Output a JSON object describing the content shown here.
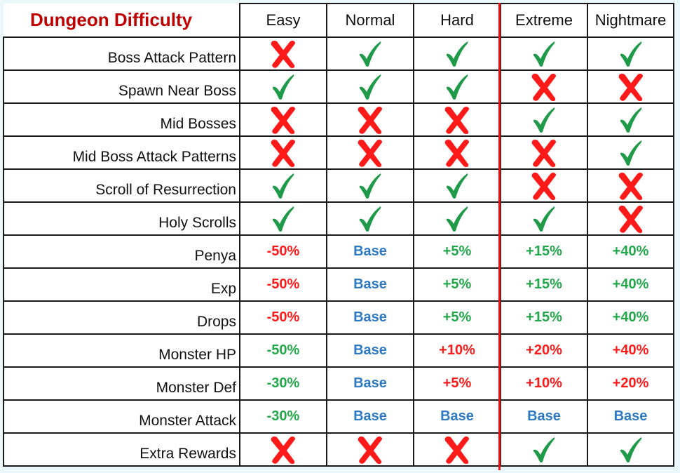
{
  "title": "Dungeon Difficulty",
  "columns": [
    "Easy",
    "Normal",
    "Hard",
    "Extreme",
    "Nightmare"
  ],
  "rows": [
    {
      "label": "Boss Attack Pattern",
      "cells": [
        {
          "type": "cross"
        },
        {
          "type": "check"
        },
        {
          "type": "check"
        },
        {
          "type": "check"
        },
        {
          "type": "check"
        }
      ]
    },
    {
      "label": "Spawn Near Boss",
      "cells": [
        {
          "type": "check"
        },
        {
          "type": "check"
        },
        {
          "type": "check"
        },
        {
          "type": "cross"
        },
        {
          "type": "cross"
        }
      ]
    },
    {
      "label": "Mid Bosses",
      "cells": [
        {
          "type": "cross"
        },
        {
          "type": "cross"
        },
        {
          "type": "cross"
        },
        {
          "type": "check"
        },
        {
          "type": "check"
        }
      ]
    },
    {
      "label": "Mid Boss Attack Patterns",
      "cells": [
        {
          "type": "cross"
        },
        {
          "type": "cross"
        },
        {
          "type": "cross"
        },
        {
          "type": "cross"
        },
        {
          "type": "check"
        }
      ]
    },
    {
      "label": "Scroll of Resurrection",
      "cells": [
        {
          "type": "check"
        },
        {
          "type": "check"
        },
        {
          "type": "check"
        },
        {
          "type": "cross"
        },
        {
          "type": "cross"
        }
      ]
    },
    {
      "label": "Holy Scrolls",
      "cells": [
        {
          "type": "check"
        },
        {
          "type": "check"
        },
        {
          "type": "check"
        },
        {
          "type": "check"
        },
        {
          "type": "cross"
        }
      ]
    },
    {
      "label": "Penya",
      "cells": [
        {
          "type": "text",
          "text": "-50%",
          "color": "red"
        },
        {
          "type": "text",
          "text": "Base",
          "color": "blue"
        },
        {
          "type": "text",
          "text": "+5%",
          "color": "green"
        },
        {
          "type": "text",
          "text": "+15%",
          "color": "green"
        },
        {
          "type": "text",
          "text": "+40%",
          "color": "green"
        }
      ]
    },
    {
      "label": "Exp",
      "cells": [
        {
          "type": "text",
          "text": "-50%",
          "color": "red"
        },
        {
          "type": "text",
          "text": "Base",
          "color": "blue"
        },
        {
          "type": "text",
          "text": "+5%",
          "color": "green"
        },
        {
          "type": "text",
          "text": "+15%",
          "color": "green"
        },
        {
          "type": "text",
          "text": "+40%",
          "color": "green"
        }
      ]
    },
    {
      "label": "Drops",
      "cells": [
        {
          "type": "text",
          "text": "-50%",
          "color": "red"
        },
        {
          "type": "text",
          "text": "Base",
          "color": "blue"
        },
        {
          "type": "text",
          "text": "+5%",
          "color": "green"
        },
        {
          "type": "text",
          "text": "+15%",
          "color": "green"
        },
        {
          "type": "text",
          "text": "+40%",
          "color": "green"
        }
      ]
    },
    {
      "label": "Monster HP",
      "cells": [
        {
          "type": "text",
          "text": "-50%",
          "color": "green"
        },
        {
          "type": "text",
          "text": "Base",
          "color": "blue"
        },
        {
          "type": "text",
          "text": "+10%",
          "color": "red"
        },
        {
          "type": "text",
          "text": "+20%",
          "color": "red"
        },
        {
          "type": "text",
          "text": "+40%",
          "color": "red"
        }
      ]
    },
    {
      "label": "Monster Def",
      "cells": [
        {
          "type": "text",
          "text": "-30%",
          "color": "green"
        },
        {
          "type": "text",
          "text": "Base",
          "color": "blue"
        },
        {
          "type": "text",
          "text": "+5%",
          "color": "red"
        },
        {
          "type": "text",
          "text": "+10%",
          "color": "red"
        },
        {
          "type": "text",
          "text": "+20%",
          "color": "red"
        }
      ]
    },
    {
      "label": "Monster Attack",
      "cells": [
        {
          "type": "text",
          "text": "-30%",
          "color": "green"
        },
        {
          "type": "text",
          "text": "Base",
          "color": "blue"
        },
        {
          "type": "text",
          "text": "Base",
          "color": "blue"
        },
        {
          "type": "text",
          "text": "Base",
          "color": "blue"
        },
        {
          "type": "text",
          "text": "Base",
          "color": "blue"
        }
      ]
    },
    {
      "label": "Extra Rewards",
      "cells": [
        {
          "type": "cross"
        },
        {
          "type": "cross"
        },
        {
          "type": "cross"
        },
        {
          "type": "check"
        },
        {
          "type": "check"
        }
      ]
    }
  ],
  "colors": {
    "title": "#c00000",
    "check": "#1f9a49",
    "cross": "#ff1a1a",
    "red": "#ff1a1a",
    "green": "#22a84a",
    "blue": "#2e7bc4",
    "divider": "#e8141c"
  }
}
